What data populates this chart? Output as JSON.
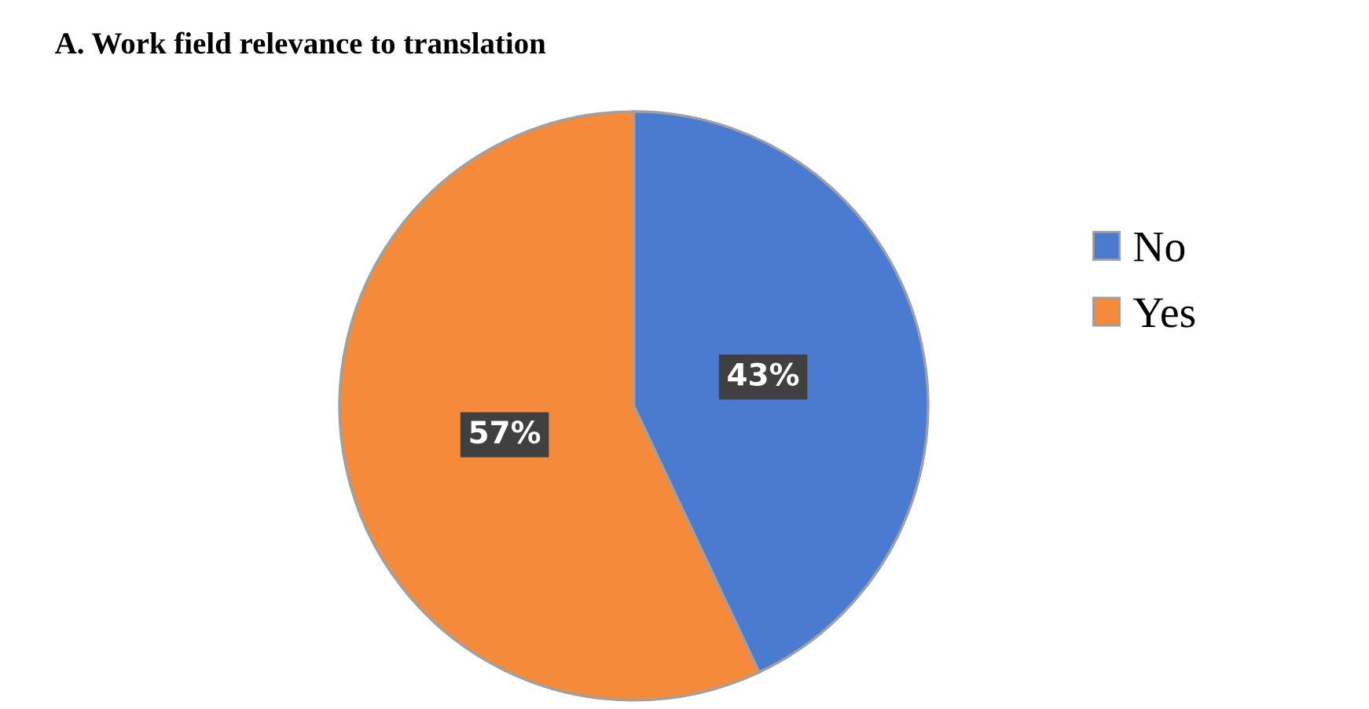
{
  "chart_data": {
    "type": "pie",
    "title": "A. Work field relevance to translation",
    "categories": [
      "No",
      "Yes"
    ],
    "values": [
      43,
      57
    ],
    "colors": [
      "#4a7bd0",
      "#f58a3a"
    ],
    "value_labels": [
      "43%",
      "57%"
    ],
    "legend": "right"
  }
}
